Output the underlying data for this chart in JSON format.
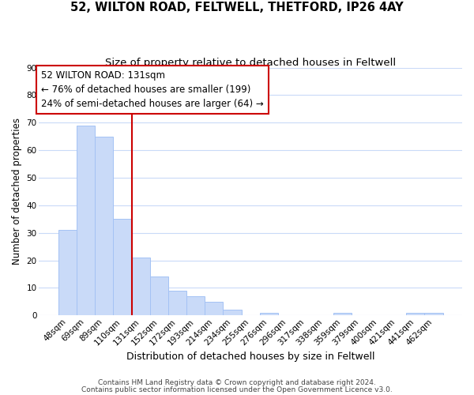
{
  "title": "52, WILTON ROAD, FELTWELL, THETFORD, IP26 4AY",
  "subtitle": "Size of property relative to detached houses in Feltwell",
  "xlabel": "Distribution of detached houses by size in Feltwell",
  "ylabel": "Number of detached properties",
  "bar_labels": [
    "48sqm",
    "69sqm",
    "89sqm",
    "110sqm",
    "131sqm",
    "152sqm",
    "172sqm",
    "193sqm",
    "214sqm",
    "234sqm",
    "255sqm",
    "276sqm",
    "296sqm",
    "317sqm",
    "338sqm",
    "359sqm",
    "379sqm",
    "400sqm",
    "421sqm",
    "441sqm",
    "462sqm"
  ],
  "bar_values": [
    31,
    69,
    65,
    35,
    21,
    14,
    9,
    7,
    5,
    2,
    0,
    1,
    0,
    0,
    0,
    1,
    0,
    0,
    0,
    1,
    1
  ],
  "bar_color": "#c9daf8",
  "bar_edge_color": "#a4c2f4",
  "highlight_line_index": 4,
  "highlight_line_color": "#cc0000",
  "ylim": [
    0,
    90
  ],
  "yticks": [
    0,
    10,
    20,
    30,
    40,
    50,
    60,
    70,
    80,
    90
  ],
  "annotation_box_text_line1": "52 WILTON ROAD: 131sqm",
  "annotation_box_text_line2": "← 76% of detached houses are smaller (199)",
  "annotation_box_text_line3": "24% of semi-detached houses are larger (64) →",
  "footer_line1": "Contains HM Land Registry data © Crown copyright and database right 2024.",
  "footer_line2": "Contains public sector information licensed under the Open Government Licence v3.0.",
  "background_color": "#ffffff",
  "grid_color": "#c9daf8",
  "annotation_box_facecolor": "#ffffff",
  "annotation_box_edgecolor": "#cc0000",
  "title_fontsize": 10.5,
  "subtitle_fontsize": 9.5,
  "xlabel_fontsize": 9,
  "ylabel_fontsize": 8.5,
  "tick_fontsize": 7.5,
  "footer_fontsize": 6.5,
  "annotation_fontsize": 8.5
}
